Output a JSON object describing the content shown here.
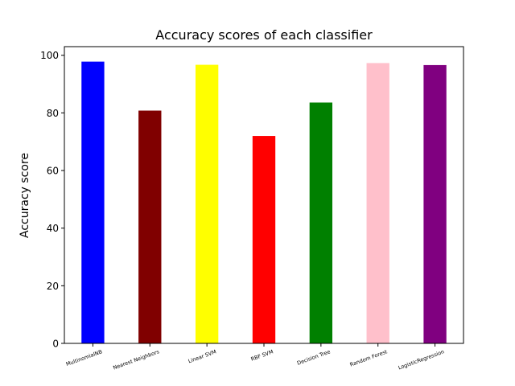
{
  "chart_data": {
    "type": "bar",
    "title": "Accuracy scores of each classifier",
    "xlabel": "",
    "ylabel": "Accuracy score",
    "categories": [
      "MultinomialNB",
      "Nearest Neighbors",
      "Linear SVM",
      "RBF SVM",
      "Decision Tree",
      "Random Forest",
      "LogisticRegression"
    ],
    "values": [
      97.8,
      80.8,
      96.7,
      72.0,
      83.6,
      97.3,
      96.6
    ],
    "colors": [
      "#0000ff",
      "#800000",
      "#ffff00",
      "#ff0000",
      "#008000",
      "#ffc0cb",
      "#800080"
    ],
    "ylim": [
      0,
      103
    ],
    "yticks": [
      0,
      20,
      40,
      60,
      80,
      100
    ],
    "grid": false,
    "legend": "none"
  }
}
